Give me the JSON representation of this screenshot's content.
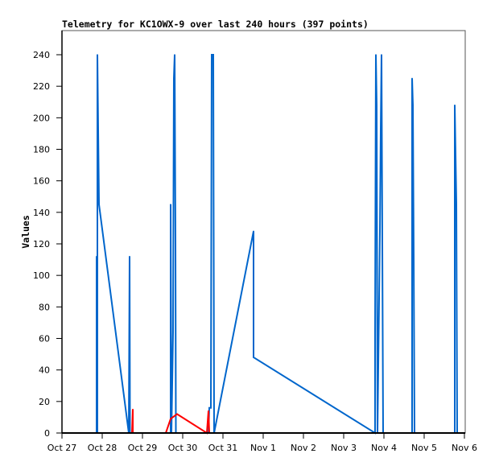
{
  "chart_data": {
    "type": "line",
    "title": "Telemetry for KC1OWX-9 over last 240 hours (397 points)",
    "xlabel": "",
    "ylabel": "Values",
    "x_unit": "days since Oct 27",
    "xlim": [
      0,
      10
    ],
    "ylim": [
      0,
      255
    ],
    "x_tick_labels": [
      "Oct 27",
      "Oct 28",
      "Oct 29",
      "Oct 30",
      "Oct 31",
      "Nov 1",
      "Nov 2",
      "Nov 3",
      "Nov 4",
      "Nov 5",
      "Nov 6"
    ],
    "y_ticks": [
      0,
      20,
      40,
      60,
      80,
      100,
      120,
      140,
      160,
      180,
      200,
      220,
      240
    ],
    "grid": false,
    "legend": "none",
    "series": [
      {
        "name": "series-blue",
        "color": "#0066cc",
        "points": [
          [
            0.86,
            0
          ],
          [
            0.86,
            112
          ],
          [
            0.87,
            0
          ],
          [
            0.88,
            0
          ],
          [
            0.88,
            240
          ],
          [
            0.9,
            192
          ],
          [
            0.92,
            145
          ],
          [
            1.66,
            0
          ],
          [
            1.67,
            56
          ],
          [
            1.68,
            112
          ],
          [
            1.69,
            0
          ],
          [
            2.7,
            0
          ],
          [
            2.7,
            145
          ],
          [
            2.72,
            0
          ],
          [
            2.76,
            64
          ],
          [
            2.78,
            225
          ],
          [
            2.8,
            240
          ],
          [
            2.82,
            120
          ],
          [
            2.83,
            0
          ],
          [
            3.64,
            0
          ],
          [
            3.66,
            16
          ],
          [
            3.7,
            16
          ],
          [
            3.72,
            240
          ],
          [
            3.76,
            240
          ],
          [
            3.78,
            0
          ],
          [
            4.76,
            128
          ],
          [
            4.76,
            48
          ],
          [
            7.78,
            0
          ],
          [
            7.78,
            64
          ],
          [
            7.8,
            240
          ],
          [
            7.82,
            208
          ],
          [
            7.84,
            0
          ],
          [
            7.9,
            128
          ],
          [
            7.92,
            192
          ],
          [
            7.94,
            240
          ],
          [
            7.96,
            120
          ],
          [
            7.98,
            0
          ],
          [
            8.7,
            0
          ],
          [
            8.7,
            225
          ],
          [
            8.72,
            208
          ],
          [
            8.74,
            112
          ],
          [
            8.76,
            0
          ],
          [
            9.76,
            0
          ],
          [
            9.76,
            208
          ],
          [
            9.8,
            145
          ],
          [
            9.82,
            0
          ]
        ]
      },
      {
        "name": "series-red",
        "color": "#ff0000",
        "points": [
          [
            1.74,
            0
          ],
          [
            1.76,
            15
          ],
          [
            1.76,
            0
          ],
          [
            2.58,
            0
          ],
          [
            2.7,
            9
          ],
          [
            2.86,
            12
          ],
          [
            3.6,
            0
          ],
          [
            3.64,
            14
          ],
          [
            3.66,
            0
          ]
        ]
      }
    ]
  }
}
